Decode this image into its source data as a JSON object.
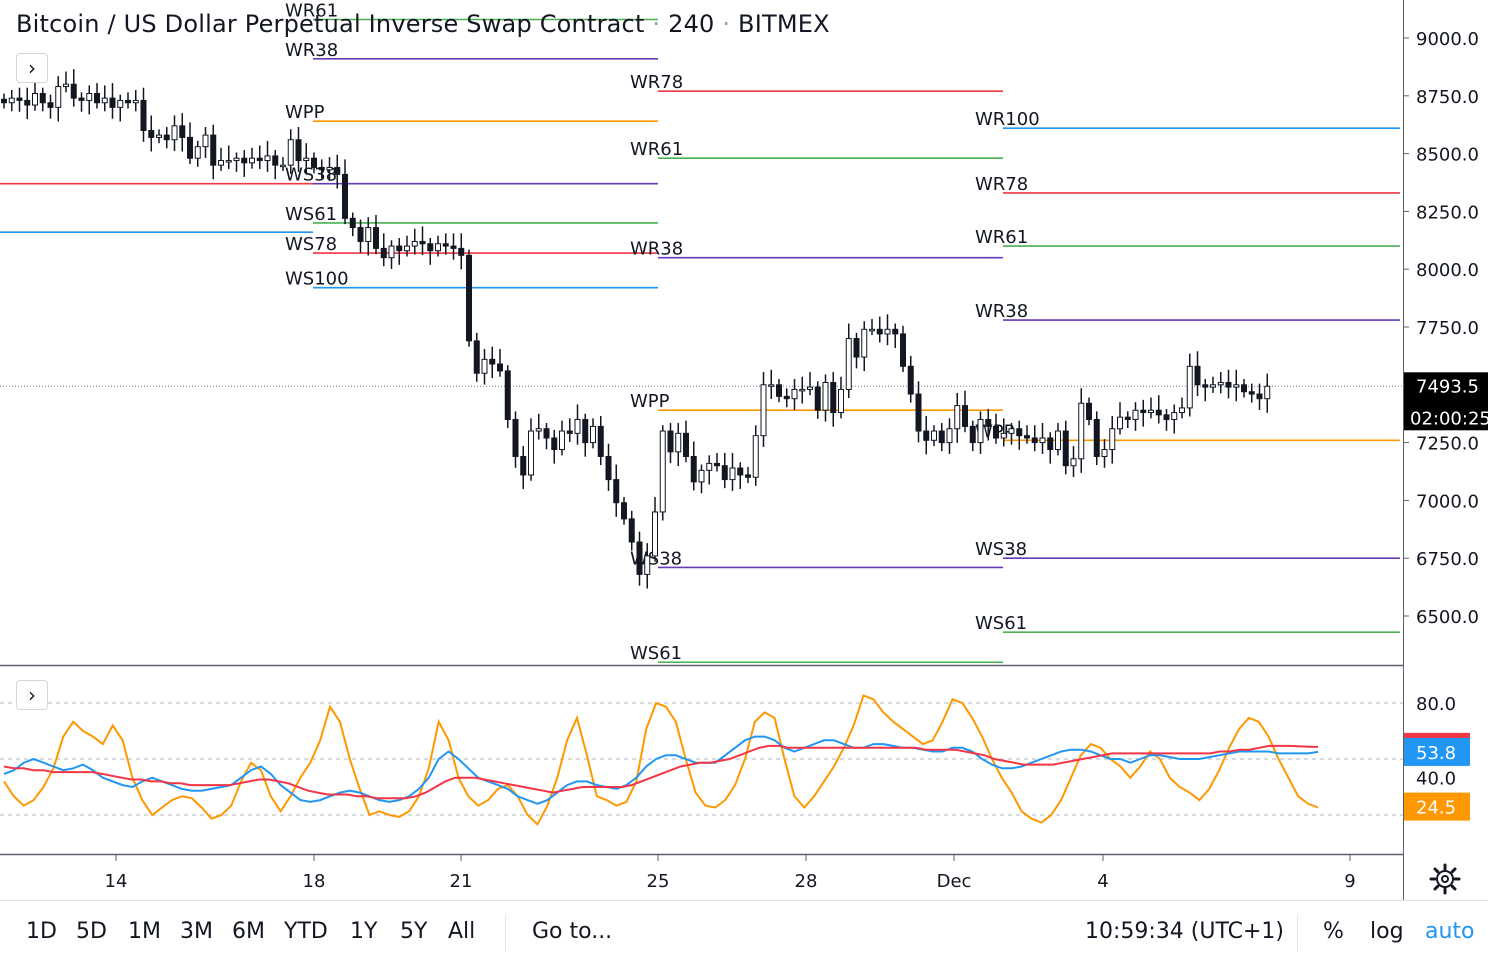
{
  "header": {
    "symbol": "Bitcoin / US Dollar Perpetual Inverse Swap Contract",
    "interval": "240",
    "exchange": "BITMEX",
    "separator": "·"
  },
  "price_axis": {
    "ticks": [
      "9000.0",
      "8750.0",
      "8500.0",
      "8250.0",
      "8000.0",
      "7750.0",
      "7500.0",
      "7250.0",
      "7000.0",
      "6750.0",
      "6500.0"
    ],
    "last_price_label": "7493.5",
    "countdown_label": "02:00:25",
    "last_price_color": "#000000"
  },
  "indicator_axis": {
    "ticks": [
      "80.0",
      "40.0"
    ],
    "labels": [
      {
        "text": "56.5",
        "color": "#f23645"
      },
      {
        "text": "53.8",
        "color": "#2196f3"
      },
      {
        "text": "24.5",
        "color": "#ff9800"
      }
    ]
  },
  "time_axis": {
    "ticks": [
      "14",
      "18",
      "21",
      "25",
      "28",
      "Dec",
      "4",
      "9"
    ]
  },
  "icons": {
    "collapse_main": "chevron-right-icon",
    "collapse_indicator": "chevron-right-icon",
    "settings": "gear-icon"
  },
  "colors": {
    "wpp": "#ff9800",
    "r38_s38": "#673ab7",
    "r61_s61": "#4caf50",
    "r78_s78": "#f23645",
    "r100_s100": "#2196f3",
    "stoch_k": "#ff9800",
    "stoch_d": "#2196f3",
    "signal": "#f23645"
  },
  "bottom_bar": {
    "ranges": [
      "1D",
      "5D",
      "1M",
      "3M",
      "6M",
      "YTD",
      "1Y",
      "5Y",
      "All"
    ],
    "goto": "Go to...",
    "clock": "10:59:34 (UTC+1)",
    "percent": "%",
    "log": "log",
    "auto": "auto"
  },
  "chart_data": [
    {
      "type": "candlestick",
      "title": "Bitcoin / US Dollar Perpetual Inverse Swap Contract · 240 · BITMEX",
      "ylim": [
        6300,
        9150
      ],
      "x_ticks": [
        "14",
        "18",
        "21",
        "25",
        "28",
        "Dec",
        "4",
        "9"
      ],
      "y_ticks": [
        9000,
        8750,
        8500,
        8250,
        8000,
        7750,
        7500,
        7250,
        7000,
        6750,
        6500
      ],
      "last_price": 7493.5,
      "grid": false,
      "pivot_levels": [
        {
          "label": "WR61",
          "value": 9080,
          "color": "#4caf50"
        },
        {
          "label": "WR38",
          "value": 8910,
          "color": "#673ab7"
        },
        {
          "label": "WPP",
          "value": 8640,
          "color": "#ff9800"
        },
        {
          "label": "WS38",
          "value": 8370,
          "color": "#673ab7"
        },
        {
          "label": "WS61",
          "value": 8200,
          "color": "#4caf50"
        },
        {
          "label": "WS78",
          "value": 8070,
          "color": "#f23645"
        },
        {
          "label": "WS100",
          "value": 7920,
          "color": "#2196f3"
        },
        {
          "label": "WR78",
          "value": 8770,
          "color": "#f23645"
        },
        {
          "label": "WR61",
          "value": 8480,
          "color": "#4caf50"
        },
        {
          "label": "WR38",
          "value": 8050,
          "color": "#673ab7"
        },
        {
          "label": "WPP",
          "value": 7390,
          "color": "#ff9800"
        },
        {
          "label": "WS38",
          "value": 6710,
          "color": "#673ab7"
        },
        {
          "label": "WS61",
          "value": 6300,
          "color": "#4caf50"
        },
        {
          "label": "WR100",
          "value": 8610,
          "color": "#2196f3"
        },
        {
          "label": "WR78",
          "value": 8330,
          "color": "#f23645"
        },
        {
          "label": "WR61",
          "value": 8100,
          "color": "#4caf50"
        },
        {
          "label": "WR38",
          "value": 7780,
          "color": "#673ab7"
        },
        {
          "label": "WPP",
          "value": 7260,
          "color": "#ff9800"
        },
        {
          "label": "WS38",
          "value": 6750,
          "color": "#673ab7"
        },
        {
          "label": "WS61",
          "value": 6430,
          "color": "#4caf50"
        }
      ],
      "candles_close": [
        8720,
        8740,
        8730,
        8710,
        8760,
        8720,
        8700,
        8790,
        8800,
        8740,
        8730,
        8760,
        8720,
        8740,
        8700,
        8730,
        8720,
        8730,
        8600,
        8570,
        8580,
        8560,
        8620,
        8570,
        8480,
        8530,
        8580,
        8450,
        8470,
        8470,
        8480,
        8460,
        8480,
        8470,
        8490,
        8450,
        8450,
        8560,
        8470,
        8480,
        8440,
        8430,
        8440,
        8410,
        8220,
        8180,
        8120,
        8180,
        8090,
        8050,
        8100,
        8080,
        8100,
        8120,
        8110,
        8080,
        8110,
        8100,
        8090,
        8060,
        7690,
        7550,
        7610,
        7590,
        7560,
        7350,
        7190,
        7110,
        7300,
        7310,
        7270,
        7220,
        7300,
        7290,
        7350,
        7250,
        7320,
        7190,
        7090,
        6990,
        6920,
        6820,
        6680,
        6760,
        6950,
        7300,
        7210,
        7290,
        7190,
        7080,
        7130,
        7160,
        7150,
        7090,
        7140,
        7110,
        7100,
        7280,
        7500,
        7500,
        7450,
        7440,
        7480,
        7480,
        7490,
        7390,
        7510,
        7380,
        7480,
        7700,
        7620,
        7740,
        7740,
        7720,
        7740,
        7720,
        7580,
        7460,
        7300,
        7260,
        7300,
        7250,
        7310,
        7410,
        7320,
        7250,
        7350,
        7320,
        7270,
        7290,
        7310,
        7280,
        7270,
        7250,
        7270,
        7220,
        7300,
        7150,
        7180,
        7420,
        7350,
        7190,
        7220,
        7310,
        7360,
        7350,
        7390,
        7380,
        7390,
        7370,
        7350,
        7380,
        7400,
        7580,
        7500,
        7490,
        7500,
        7510,
        7490,
        7500,
        7470,
        7460,
        7440,
        7493.5
      ]
    },
    {
      "type": "line",
      "title": "",
      "ylim": [
        0,
        100
      ],
      "y_ticks": [
        80,
        40
      ],
      "reference_lines": [
        80,
        50,
        20
      ],
      "series": [
        {
          "color": "#ff9800",
          "values": [
            38,
            30,
            25,
            28,
            35,
            45,
            62,
            70,
            65,
            62,
            58,
            68,
            60,
            40,
            28,
            20,
            24,
            28,
            30,
            29,
            24,
            18,
            20,
            25,
            38,
            48,
            44,
            30,
            22,
            30,
            40,
            48,
            60,
            78,
            70,
            50,
            34,
            20,
            22,
            20,
            19,
            22,
            30,
            45,
            70,
            60,
            40,
            30,
            25,
            28,
            34,
            36,
            30,
            20,
            15,
            25,
            40,
            60,
            72,
            52,
            30,
            28,
            25,
            27,
            38,
            66,
            80,
            78,
            70,
            50,
            32,
            25,
            24,
            28,
            36,
            50,
            70,
            75,
            72,
            50,
            30,
            24,
            30,
            38,
            46,
            56,
            68,
            84,
            82,
            75,
            70,
            66,
            62,
            58,
            60,
            70,
            82,
            80,
            72,
            62,
            50,
            40,
            32,
            22,
            18,
            16,
            20,
            28,
            40,
            52,
            58,
            56,
            50,
            46,
            40,
            46,
            54,
            50,
            40,
            35,
            32,
            28,
            34,
            44,
            56,
            66,
            72,
            70,
            62,
            50,
            40,
            30,
            26,
            24
          ]
        },
        {
          "color": "#2196f3",
          "values": [
            42,
            44,
            48,
            50,
            48,
            46,
            44,
            45,
            47,
            44,
            40,
            38,
            36,
            35,
            38,
            40,
            38,
            36,
            34,
            33,
            33,
            34,
            35,
            36,
            40,
            44,
            46,
            42,
            36,
            32,
            28,
            27,
            28,
            30,
            32,
            33,
            32,
            30,
            28,
            27,
            28,
            30,
            34,
            40,
            50,
            54,
            50,
            45,
            40,
            38,
            36,
            34,
            30,
            28,
            26,
            28,
            32,
            36,
            38,
            38,
            36,
            35,
            34,
            36,
            40,
            46,
            50,
            52,
            52,
            50,
            48,
            48,
            48,
            52,
            56,
            60,
            62,
            62,
            60,
            56,
            54,
            56,
            58,
            60,
            60,
            58,
            56,
            56,
            58,
            58,
            57,
            56,
            56,
            55,
            54,
            54,
            56,
            56,
            54,
            50,
            47,
            45,
            45,
            46,
            48,
            50,
            52,
            54,
            55,
            55,
            54,
            52,
            50,
            50,
            48,
            50,
            52,
            52,
            51,
            50,
            50,
            50,
            51,
            52,
            53,
            54,
            54,
            54,
            54,
            53,
            53,
            53,
            53,
            53.8
          ]
        },
        {
          "color": "#f23645",
          "values": [
            46,
            45,
            45,
            44,
            44,
            43,
            43,
            43,
            43,
            43,
            42,
            41,
            40,
            39,
            39,
            38,
            38,
            37,
            37,
            36,
            36,
            36,
            36,
            36,
            37,
            38,
            39,
            39,
            38,
            37,
            35,
            33,
            32,
            31,
            31,
            31,
            30,
            30,
            29,
            29,
            29,
            29,
            30,
            32,
            35,
            38,
            40,
            40,
            40,
            39,
            38,
            37,
            36,
            35,
            34,
            33,
            32,
            33,
            34,
            35,
            35,
            35,
            35,
            35,
            36,
            38,
            40,
            42,
            44,
            46,
            47,
            48,
            48,
            49,
            50,
            52,
            54,
            56,
            57,
            57,
            56,
            56,
            56,
            56,
            56,
            56,
            56,
            56,
            56,
            56,
            56,
            56,
            56,
            56,
            55,
            55,
            55,
            55,
            54,
            53,
            52,
            50,
            49,
            48,
            47,
            47,
            47,
            47,
            48,
            49,
            50,
            51,
            52,
            53,
            53,
            53,
            53,
            53,
            53,
            53,
            53,
            53,
            53,
            53,
            54,
            54,
            55,
            55,
            56,
            57,
            57,
            57,
            56.8,
            56.6,
            56.5
          ]
        }
      ]
    }
  ]
}
